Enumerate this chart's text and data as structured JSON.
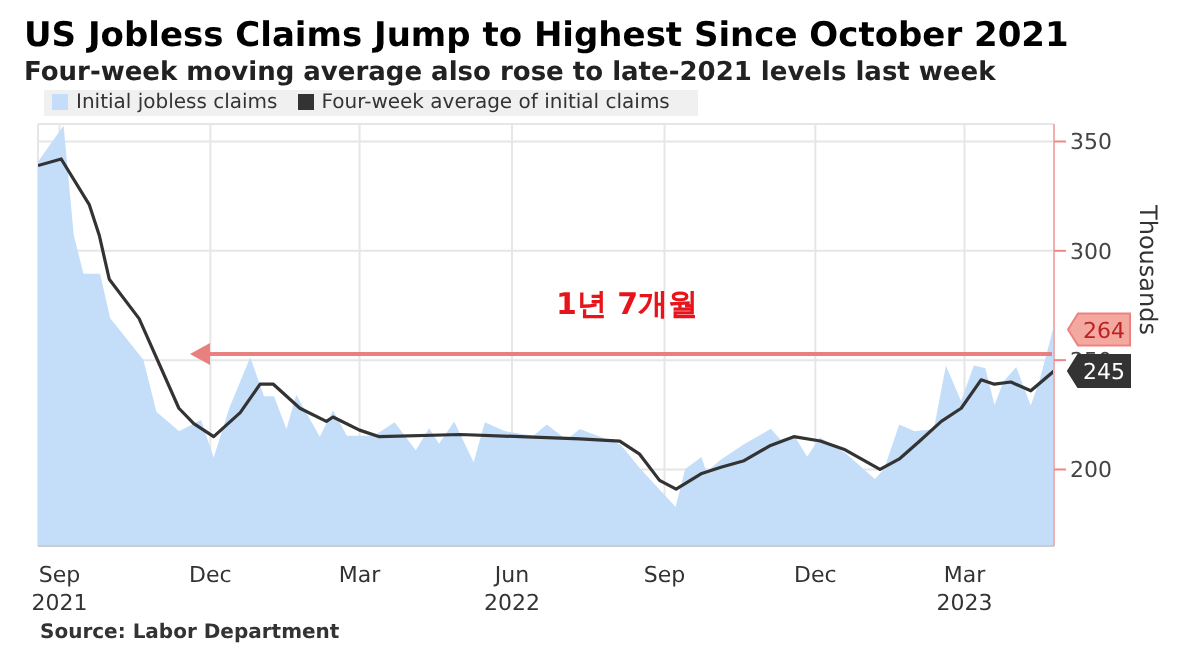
{
  "chart_data": {
    "type": "line",
    "title": "US Jobless Claims Jump to Highest Since October 2021",
    "subtitle": "Four-week moving average also rose to late-2021 levels last week",
    "ylabel": "Thousands",
    "annotations": [
      "1년 7개월",
      "Source: Labor Department"
    ],
    "xlim": [
      "2021-08-19",
      "2023-04-24"
    ],
    "xticks": [
      {
        "value": "2021-09-01",
        "label": "Sep\n2021"
      },
      {
        "value": "2021-12-01",
        "label": "Dec"
      },
      {
        "value": "2022-03-01",
        "label": "Mar"
      },
      {
        "value": "2022-06-01",
        "label": "Jun\n2022"
      },
      {
        "value": "2022-09-01",
        "label": "Sep"
      },
      {
        "value": "2022-12-01",
        "label": "Dec"
      },
      {
        "value": "2023-03-01",
        "label": "Mar\n2023"
      }
    ],
    "ylim": [
      165,
      358
    ],
    "yticks": [
      200,
      250,
      300,
      350
    ],
    "grid": true,
    "legend": "top left",
    "series": [
      {
        "name": "Initial jobless claims",
        "type": "area",
        "color": "#c4defa",
        "x": [
          "2021-08-19",
          "2021-09-03",
          "2021-09-09",
          "2021-09-15",
          "2021-09-25",
          "2021-10-01",
          "2021-10-21",
          "2021-10-29",
          "2021-11-12",
          "2021-11-25",
          "2021-12-03",
          "2021-12-13",
          "2021-12-25",
          "2022-01-02",
          "2022-01-08",
          "2022-01-16",
          "2022-01-22",
          "2022-02-05",
          "2022-02-13",
          "2022-02-21",
          "2022-03-10",
          "2022-03-22",
          "2022-04-04",
          "2022-04-12",
          "2022-04-18",
          "2022-04-27",
          "2022-05-09",
          "2022-05-16",
          "2022-05-28",
          "2022-06-14",
          "2022-06-22",
          "2022-07-04",
          "2022-07-12",
          "2022-08-05",
          "2022-08-17",
          "2022-09-08",
          "2022-09-14",
          "2022-09-23",
          "2022-09-26",
          "2022-10-05",
          "2022-10-19",
          "2022-11-04",
          "2022-11-10",
          "2022-11-18",
          "2022-11-26",
          "2022-12-04",
          "2022-12-19",
          "2023-01-06",
          "2023-01-12",
          "2023-01-21",
          "2023-01-30",
          "2023-02-11",
          "2023-02-18",
          "2023-02-27",
          "2023-03-07",
          "2023-03-13",
          "2023-03-19",
          "2023-03-25",
          "2023-04-01",
          "2023-04-10",
          "2023-04-16",
          "2023-04-24"
        ],
        "values": [
          340,
          356,
          307,
          289,
          289,
          269,
          250,
          226,
          217,
          222,
          204,
          228,
          250,
          233,
          233,
          217,
          233,
          214,
          226,
          215,
          215,
          221,
          208,
          218,
          211,
          221,
          202,
          221,
          217,
          215,
          220,
          213,
          218,
          211,
          200,
          182,
          200,
          205,
          198,
          204,
          211,
          218,
          213,
          215,
          205,
          214,
          207,
          195,
          200,
          220,
          217,
          218,
          246,
          230,
          247,
          246,
          228,
          240,
          246,
          228,
          241,
          264
        ],
        "value_labels": [
          null,
          null,
          null,
          null,
          null,
          null,
          null,
          null,
          null,
          null,
          null,
          null,
          null,
          null,
          null,
          null,
          null,
          null,
          null,
          null,
          null,
          null,
          null,
          null,
          null,
          null,
          null,
          null,
          null,
          null,
          null,
          null,
          null,
          null,
          null,
          null,
          null,
          null,
          null,
          null,
          null,
          null,
          null,
          null,
          null,
          null,
          null,
          null,
          null,
          null,
          null,
          null,
          null,
          null,
          null,
          null,
          null,
          null,
          null,
          null,
          null,
          "264"
        ]
      },
      {
        "name": "Four-week average of initial claims",
        "type": "line",
        "color": "#333333",
        "x": [
          "2021-08-19",
          "2021-09-02",
          "2021-09-19",
          "2021-09-25",
          "2021-10-01",
          "2021-10-19",
          "2021-11-12",
          "2021-11-21",
          "2021-12-03",
          "2021-12-19",
          "2021-12-31",
          "2022-01-08",
          "2022-01-24",
          "2022-02-09",
          "2022-02-13",
          "2022-03-01",
          "2022-03-13",
          "2022-05-01",
          "2022-06-06",
          "2022-07-12",
          "2022-08-05",
          "2022-08-17",
          "2022-08-29",
          "2022-09-08",
          "2022-09-23",
          "2022-10-05",
          "2022-10-19",
          "2022-11-04",
          "2022-11-18",
          "2022-12-04",
          "2022-12-19",
          "2023-01-09",
          "2023-01-21",
          "2023-02-02",
          "2023-02-15",
          "2023-02-27",
          "2023-03-11",
          "2023-03-19",
          "2023-03-29",
          "2023-04-10",
          "2023-04-24"
        ],
        "values": [
          339,
          342,
          321,
          307,
          287,
          269,
          228,
          221,
          215,
          226,
          239,
          239,
          228,
          222,
          224,
          218,
          215,
          216,
          215,
          214,
          213,
          207,
          195,
          191,
          198,
          201,
          204,
          211,
          215,
          213,
          209,
          200,
          205,
          213,
          222,
          228,
          241,
          239,
          240,
          236,
          245
        ],
        "value_labels": [
          null,
          null,
          null,
          null,
          null,
          null,
          null,
          null,
          null,
          null,
          null,
          null,
          null,
          null,
          null,
          null,
          null,
          null,
          null,
          null,
          null,
          null,
          null,
          null,
          null,
          null,
          null,
          null,
          null,
          null,
          null,
          null,
          null,
          null,
          null,
          null,
          null,
          null,
          null,
          null,
          "245"
        ]
      }
    ]
  }
}
